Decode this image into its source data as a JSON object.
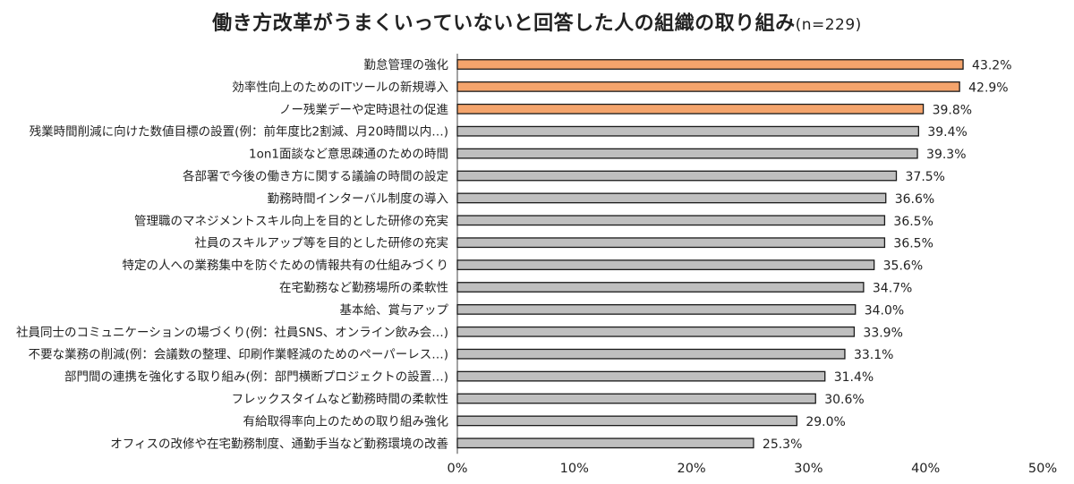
{
  "chart_data": {
    "type": "bar",
    "orientation": "horizontal",
    "title": "働き方改革がうまくいっていないと回答した人の組織の取り組み",
    "title_note": "(n=229)",
    "categories": [
      "勤怠管理の強化",
      "効率性向上のためのITツールの新規導入",
      "ノー残業デーや定時退社の促進",
      "残業時間削減に向けた数値目標の設置(例：前年度比2割減、月20時間以内…)",
      "1on1面談など意思疎通のための時間",
      "各部署で今後の働き方に関する議論の時間の設定",
      "勤務時間インターバル制度の導入",
      "管理職のマネジメントスキル向上を目的とした研修の充実",
      "社員のスキルアップ等を目的とした研修の充実",
      "特定の人への業務集中を防ぐための情報共有の仕組みづくり",
      "在宅勤務など勤務場所の柔軟性",
      "基本給、賞与アップ",
      "社員同士のコミュニケーションの場づくり(例：社員SNS、オンライン飲み会…)",
      "不要な業務の削減(例：会議数の整理、印刷作業軽減のためのペーパーレス…)",
      "部門間の連携を強化する取り組み(例：部門横断プロジェクトの設置…)",
      "フレックスタイムなど勤務時間の柔軟性",
      "有給取得率向上のための取り組み強化",
      "オフィスの改修や在宅勤務制度、通勤手当など勤務環境の改善"
    ],
    "values": [
      43.2,
      42.9,
      39.8,
      39.4,
      39.3,
      37.5,
      36.6,
      36.5,
      36.5,
      35.6,
      34.7,
      34.0,
      33.9,
      33.1,
      31.4,
      30.6,
      29.0,
      25.3
    ],
    "value_labels": [
      "43.2%",
      "42.9%",
      "39.8%",
      "39.4%",
      "39.3%",
      "37.5%",
      "36.6%",
      "36.5%",
      "36.5%",
      "35.6%",
      "34.7%",
      "34.0%",
      "33.9%",
      "33.1%",
      "31.4%",
      "30.6%",
      "29.0%",
      "25.3%"
    ],
    "highlight_top_n": 3,
    "xlim": [
      0,
      50
    ],
    "x_ticks": [
      0,
      10,
      20,
      30,
      40,
      50
    ],
    "x_tick_labels": [
      "0%",
      "10%",
      "20%",
      "30%",
      "40%",
      "50%"
    ],
    "grid": false,
    "legend": "none",
    "colors": {
      "highlight": "#F4A46C",
      "normal": "#BFBFBF",
      "bar_border": "#1a1a1a",
      "axis": "#444444"
    }
  }
}
